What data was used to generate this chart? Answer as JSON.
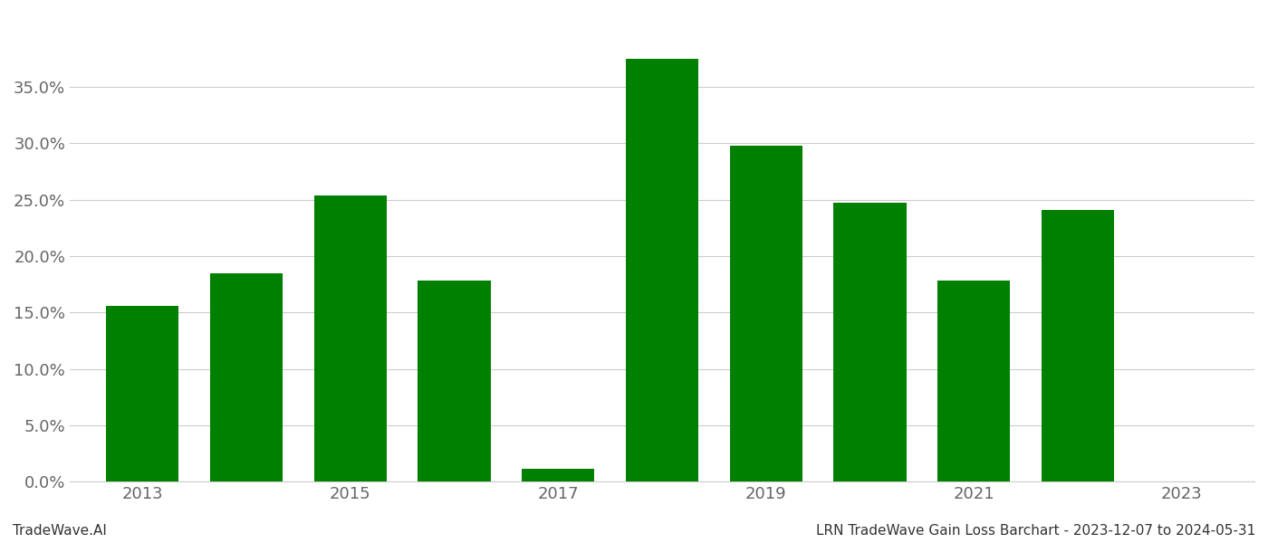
{
  "years": [
    2013,
    2014,
    2015,
    2016,
    2017,
    2018,
    2019,
    2020,
    2021,
    2022
  ],
  "values": [
    0.156,
    0.185,
    0.254,
    0.178,
    0.011,
    0.375,
    0.298,
    0.247,
    0.178,
    0.241
  ],
  "bar_color": "#008000",
  "background_color": "#ffffff",
  "grid_color": "#cccccc",
  "bottom_left_text": "TradeWave.AI",
  "bottom_right_text": "LRN TradeWave Gain Loss Barchart - 2023-12-07 to 2024-05-31",
  "ylim": [
    0,
    0.415
  ],
  "yticks": [
    0.0,
    0.05,
    0.1,
    0.15,
    0.2,
    0.25,
    0.3,
    0.35
  ],
  "text_color": "#666666",
  "bottom_text_color": "#333333",
  "tick_label_fontsize": 13,
  "footer_fontsize": 11,
  "xlim_min": 2012.3,
  "xlim_max": 2023.7
}
